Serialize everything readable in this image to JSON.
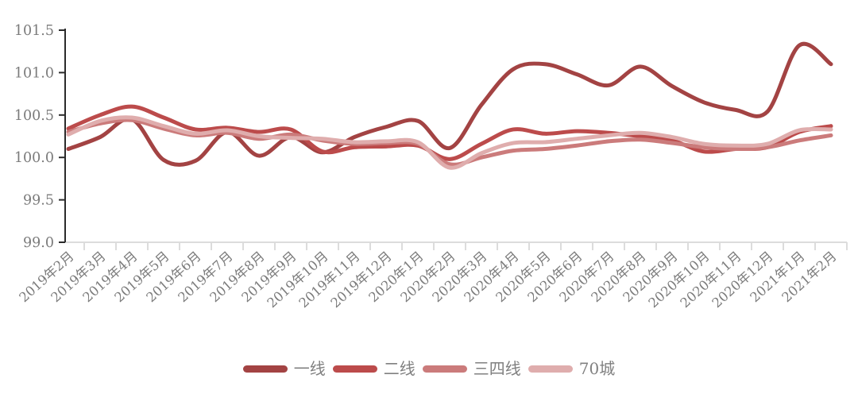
{
  "chart_data": {
    "type": "line",
    "smooth": true,
    "grid": false,
    "legend_position": "bottom",
    "ylim": [
      99.0,
      101.5
    ],
    "y_ticks": [
      99.0,
      99.5,
      100.0,
      100.5,
      101.0,
      101.5
    ],
    "y_tick_labels": [
      "99.0",
      "99.5",
      "100.0",
      "100.5",
      "101.0",
      "101.5"
    ],
    "x_labels": [
      "2019年2月",
      "2019年3月",
      "2019年4月",
      "2019年5月",
      "2019年6月",
      "2019年7月",
      "2019年8月",
      "2019年9月",
      "2019年10月",
      "2019年11月",
      "2019年12月",
      "2020年1月",
      "2020年2月",
      "2020年3月",
      "2020年4月",
      "2020年5月",
      "2020年6月",
      "2020年7月",
      "2020年8月",
      "2020年9月",
      "2020年10月",
      "2020年11月",
      "2020年12月",
      "2021年1月",
      "2021年2月"
    ],
    "series": [
      {
        "name": "一线",
        "color": "#A34343",
        "values": [
          100.1,
          100.24,
          100.45,
          99.97,
          99.96,
          100.3,
          100.02,
          100.24,
          100.06,
          100.24,
          100.36,
          100.43,
          100.11,
          100.62,
          101.04,
          101.1,
          100.98,
          100.85,
          101.07,
          100.84,
          100.65,
          100.56,
          100.54,
          101.32,
          101.1
        ]
      },
      {
        "name": "二线",
        "color": "#BC4B4B",
        "values": [
          100.34,
          100.5,
          100.6,
          100.47,
          100.33,
          100.35,
          100.3,
          100.33,
          100.07,
          100.12,
          100.13,
          100.14,
          99.98,
          100.16,
          100.33,
          100.28,
          100.31,
          100.29,
          100.25,
          100.2,
          100.07,
          100.1,
          100.12,
          100.3,
          100.37
        ]
      },
      {
        "name": "三四线",
        "color": "#CB7B7B",
        "values": [
          100.3,
          100.4,
          100.44,
          100.34,
          100.26,
          100.29,
          100.22,
          100.27,
          100.2,
          100.16,
          100.17,
          100.16,
          99.92,
          100.0,
          100.08,
          100.1,
          100.14,
          100.19,
          100.21,
          100.17,
          100.12,
          100.1,
          100.12,
          100.2,
          100.26
        ]
      },
      {
        "name": "70城",
        "color": "#DFADAD",
        "values": [
          100.27,
          100.43,
          100.47,
          100.37,
          100.28,
          100.32,
          100.25,
          100.23,
          100.22,
          100.18,
          100.19,
          100.18,
          99.88,
          100.05,
          100.17,
          100.18,
          100.22,
          100.26,
          100.29,
          100.24,
          100.16,
          100.14,
          100.16,
          100.32,
          100.33
        ]
      }
    ],
    "style": {
      "axis_text_color": "#7B7B7B",
      "y_axis_color": "#2B2B2B",
      "x_axis_color": "#DCDCDC",
      "legend_text_color": "#808080",
      "background": "#FFFFFF"
    }
  }
}
